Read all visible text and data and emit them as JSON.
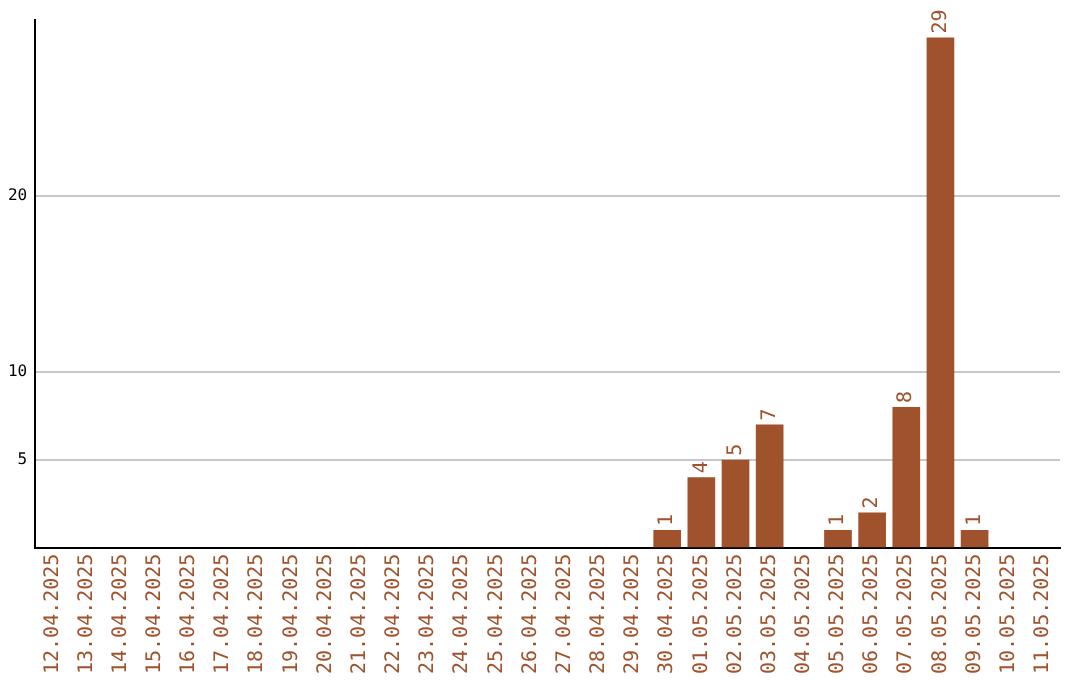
{
  "chart_data": {
    "type": "bar",
    "categories": [
      "12.04.2025",
      "13.04.2025",
      "14.04.2025",
      "15.04.2025",
      "16.04.2025",
      "17.04.2025",
      "18.04.2025",
      "19.04.2025",
      "20.04.2025",
      "21.04.2025",
      "22.04.2025",
      "23.04.2025",
      "24.04.2025",
      "25.04.2025",
      "26.04.2025",
      "27.04.2025",
      "28.04.2025",
      "29.04.2025",
      "30.04.2025",
      "01.05.2025",
      "02.05.2025",
      "03.05.2025",
      "04.05.2025",
      "05.05.2025",
      "06.05.2025",
      "07.05.2025",
      "08.05.2025",
      "09.05.2025",
      "10.05.2025",
      "11.05.2025"
    ],
    "values": [
      0,
      0,
      0,
      0,
      0,
      0,
      0,
      0,
      0,
      0,
      0,
      0,
      0,
      0,
      0,
      0,
      0,
      0,
      1,
      4,
      5,
      7,
      0,
      1,
      2,
      8,
      29,
      1,
      0,
      0
    ],
    "value_labels": [
      null,
      null,
      null,
      null,
      null,
      null,
      null,
      null,
      null,
      null,
      null,
      null,
      null,
      null,
      null,
      null,
      null,
      null,
      "1",
      "4",
      "5",
      "7",
      null,
      "1",
      "2",
      "8",
      "29",
      "1",
      null,
      null
    ],
    "color": "#a0522d",
    "ylim": [
      0,
      30
    ],
    "yticks": [
      5,
      10,
      20
    ],
    "grid": "y",
    "legend": false
  }
}
